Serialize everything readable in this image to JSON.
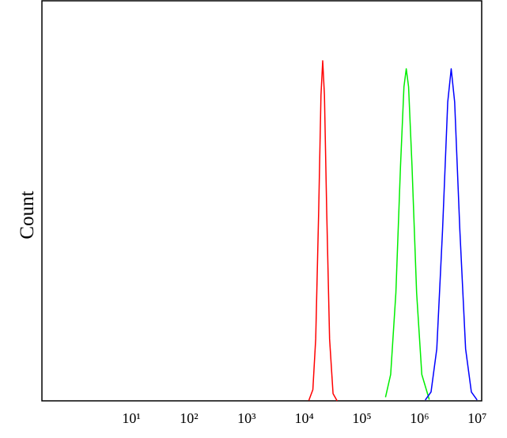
{
  "chart_data": {
    "type": "line",
    "ylabel": "Count",
    "xscale": "log",
    "xlim": [
      0.28,
      12000000
    ],
    "ylim": [
      0,
      100
    ],
    "xticks": [
      {
        "value": 10,
        "label": "10¹"
      },
      {
        "value": 100,
        "label": "10²"
      },
      {
        "value": 1000,
        "label": "10³"
      },
      {
        "value": 10000,
        "label": "10⁴"
      },
      {
        "value": 100000,
        "label": "10⁵"
      },
      {
        "value": 1000000,
        "label": "10⁶"
      },
      {
        "value": 10000000,
        "label": "10⁷"
      }
    ],
    "series": [
      {
        "color": "#ff0000",
        "x": [
          12000,
          14100,
          15800,
          17800,
          19500,
          20900,
          22400,
          24500,
          27500,
          31600,
          37200
        ],
        "values": [
          0.1,
          2.8,
          15.5,
          47.6,
          76.4,
          85,
          76.4,
          47.6,
          15.5,
          1.8,
          0
        ]
      },
      {
        "color": "#00ee00",
        "x": [
          257000,
          316000,
          389000,
          468000,
          537000,
          589000,
          646000,
          741000,
          891000,
          1096000,
          1479000
        ],
        "values": [
          0.9,
          6.6,
          27,
          58.7,
          78.5,
          83,
          78.5,
          58.7,
          27,
          6.6,
          0.3
        ]
      },
      {
        "color": "#0000ff",
        "x": [
          1259000,
          1585000,
          1995000,
          2512000,
          3090000,
          3548000,
          4074000,
          5012000,
          6310000,
          7943000,
          10000000
        ],
        "values": [
          0.2,
          2.2,
          13,
          42.7,
          74.7,
          83,
          74.7,
          42.7,
          13,
          2.2,
          0.2
        ]
      }
    ]
  }
}
